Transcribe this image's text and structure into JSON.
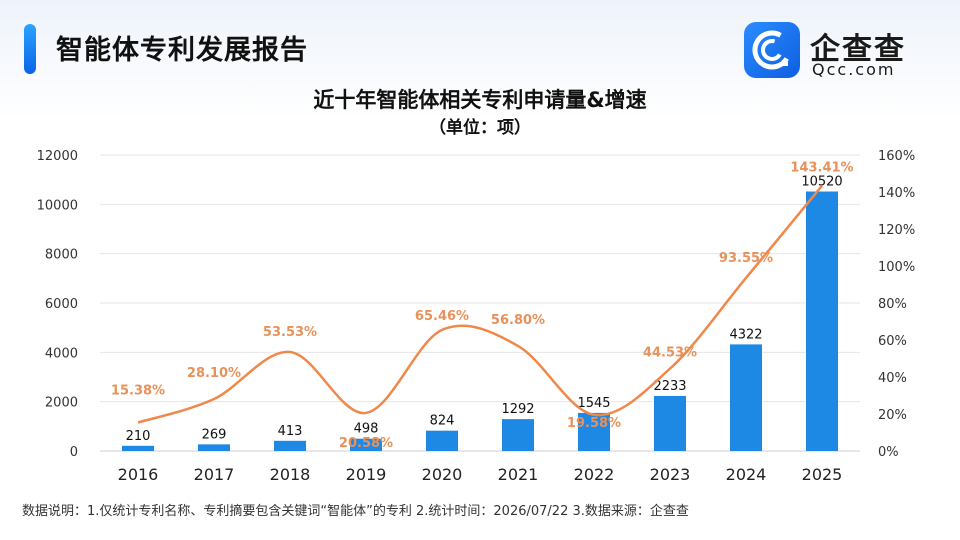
{
  "header": {
    "title": "智能体专利发展报告",
    "logo_cn": "企查查",
    "logo_en": "Qcc.com",
    "logo_icon": "qcc-logo-icon"
  },
  "colors": {
    "bar": "#1e88e5",
    "line": "#f0884a",
    "line_label": "#e8915a",
    "axis_text": "#333333",
    "grid": "#e6e6e6"
  },
  "chart_data": {
    "type": "bar",
    "title": "近十年智能体相关专利申请量&增速",
    "subtitle": "（单位：项）",
    "categories": [
      "2016",
      "2017",
      "2018",
      "2019",
      "2020",
      "2021",
      "2022",
      "2023",
      "2024",
      "2025"
    ],
    "series": [
      {
        "values": [
          210,
          269,
          413,
          498,
          824,
          1292,
          1545,
          2233,
          4322,
          10520
        ]
      },
      {
        "type": "line",
        "values": [
          15.38,
          28.1,
          53.53,
          20.58,
          65.46,
          56.8,
          19.58,
          44.53,
          93.55,
          143.41
        ]
      }
    ],
    "bar_labels": [
      "210",
      "269",
      "413",
      "498",
      "824",
      "1292",
      "1545",
      "2233",
      "4322",
      "10520"
    ],
    "line_labels": [
      "15.38%",
      "28.10%",
      "53.53%",
      "20.58%",
      "65.46%",
      "56.80%",
      "19.58%",
      "44.53%",
      "93.55%",
      "143.41%"
    ],
    "ylim": [
      0,
      12000
    ],
    "y_ticks": [
      "0",
      "2000",
      "4000",
      "6000",
      "8000",
      "10000",
      "12000"
    ],
    "y2lim": [
      0,
      160
    ],
    "y2_ticks": [
      "0%",
      "20%",
      "40%",
      "60%",
      "80%",
      "100%",
      "120%",
      "140%",
      "160%"
    ],
    "grid": true,
    "legend": "none"
  },
  "footer": {
    "note": "数据说明：1.仅统计专利名称、专利摘要包含关键词“智能体”的专利  2.统计时间：2026/07/22   3.数据来源：企查查"
  }
}
